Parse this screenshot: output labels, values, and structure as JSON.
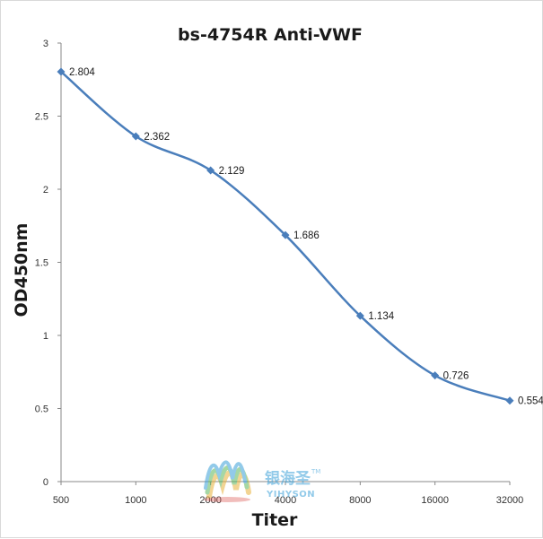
{
  "chart_data": {
    "type": "line",
    "title": "bs-4754R Anti-VWF",
    "xlabel": "Titer",
    "ylabel": "OD450nm",
    "categories": [
      "500",
      "1000",
      "2000",
      "4000",
      "8000",
      "16000",
      "32000"
    ],
    "series": [
      {
        "values": [
          2.804,
          2.362,
          2.129,
          1.686,
          1.134,
          0.726,
          0.554
        ],
        "labels": [
          "2.804",
          "2.362",
          "2.129",
          "1.686",
          "1.134",
          "0.726",
          "0.554"
        ],
        "color": "#4a7ebb"
      }
    ],
    "y_ticks": [
      "0",
      "0.5",
      "1",
      "1.5",
      "2",
      "2.5",
      "3"
    ],
    "ylim": [
      0,
      3
    ],
    "grid": false,
    "legend": "none"
  },
  "watermark": {
    "text_cn": "银海圣",
    "text_en": "YIHYSON",
    "trademark": "TM"
  }
}
